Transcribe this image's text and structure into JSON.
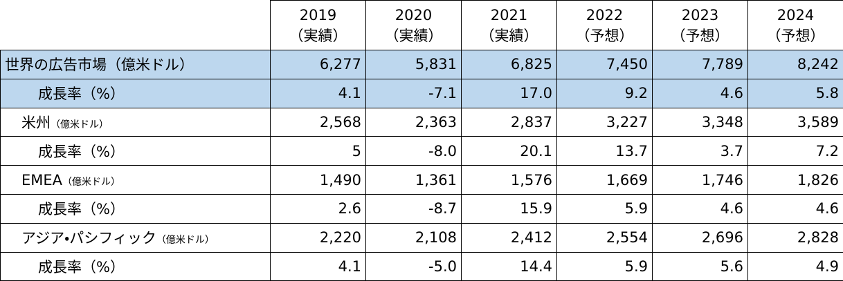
{
  "table": {
    "columns": [
      {
        "year": "2019",
        "note": "（実績）"
      },
      {
        "year": "2020",
        "note": "（実績）"
      },
      {
        "year": "2021",
        "note": "（実績）"
      },
      {
        "year": "2022",
        "note": "（予想）"
      },
      {
        "year": "2023",
        "note": "（予想）"
      },
      {
        "year": "2024",
        "note": "（予想）"
      }
    ],
    "rows": [
      {
        "label": "世界の広告市場（億米ドル）",
        "values": [
          "6,277",
          "5,831",
          "6,825",
          "7,450",
          "7,789",
          "8,242"
        ]
      },
      {
        "label": "成長率（%）",
        "values": [
          "4.1",
          "-7.1",
          "17.0",
          "9.2",
          "4.6",
          "5.8"
        ]
      },
      {
        "label": "米州",
        "unit": "（億米ドル）",
        "values": [
          "2,568",
          "2,363",
          "2,837",
          "3,227",
          "3,348",
          "3,589"
        ]
      },
      {
        "label": "成長率（%）",
        "values": [
          "5",
          "-8.0",
          "20.1",
          "13.7",
          "3.7",
          "7.2"
        ]
      },
      {
        "label": "EMEA",
        "unit": "（億米ドル）",
        "values": [
          "1,490",
          "1,361",
          "1,576",
          "1,669",
          "1,746",
          "1,826"
        ]
      },
      {
        "label": "成長率（%）",
        "values": [
          "2.6",
          "-8.7",
          "15.9",
          "5.9",
          "4.6",
          "4.6"
        ]
      },
      {
        "label": "アジア・パシフィック",
        "unit": "（億米ドル）",
        "values": [
          "2,220",
          "2,108",
          "2,412",
          "2,554",
          "2,696",
          "2,828"
        ]
      },
      {
        "label": "成長率（%）",
        "values": [
          "4.1",
          "-5.0",
          "14.4",
          "5.9",
          "5.6",
          "4.9"
        ]
      }
    ]
  }
}
